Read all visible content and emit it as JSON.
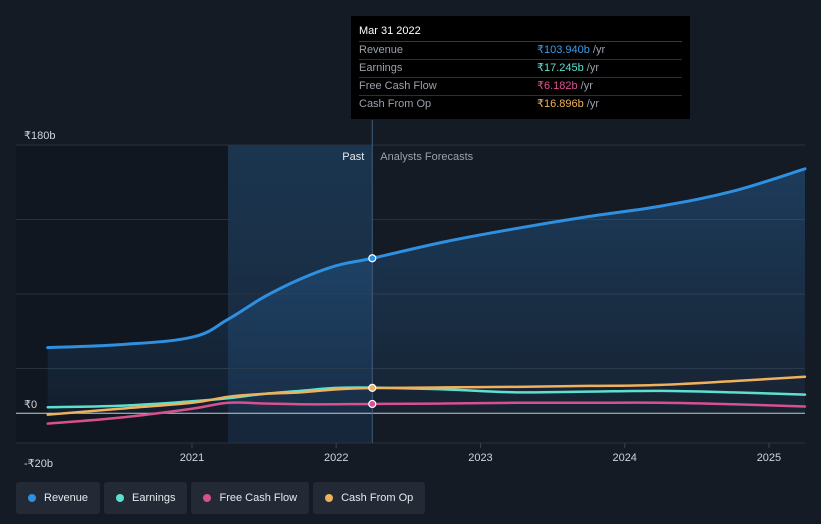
{
  "tooltip": {
    "date": "Mar 31 2022",
    "rows": [
      {
        "label": "Revenue",
        "value": "₹103.940b",
        "unit": "/yr",
        "color": "#3b9be8"
      },
      {
        "label": "Earnings",
        "value": "₹17.245b",
        "unit": "/yr",
        "color": "#5ce0d0"
      },
      {
        "label": "Free Cash Flow",
        "value": "₹6.182b",
        "unit": "/yr",
        "color": "#e0508f"
      },
      {
        "label": "Cash From Op",
        "value": "₹16.896b",
        "unit": "/yr",
        "color": "#f0b15c"
      }
    ]
  },
  "regions": {
    "past": "Past",
    "forecast": "Analysts Forecasts"
  },
  "legend": [
    {
      "label": "Revenue",
      "color": "#2f8fe0"
    },
    {
      "label": "Earnings",
      "color": "#5ce0d0"
    },
    {
      "label": "Free Cash Flow",
      "color": "#d8508f"
    },
    {
      "label": "Cash From Op",
      "color": "#f0b15c"
    }
  ],
  "chart_data": {
    "type": "line",
    "y_unit": "₹b",
    "ylim": [
      -20,
      180
    ],
    "y_ticks": [
      {
        "value": 180,
        "label": "₹180b"
      },
      {
        "value": 0,
        "label": "₹0"
      },
      {
        "value": -20,
        "label": "-₹20b"
      }
    ],
    "x_ticks": [
      {
        "value": 2021.0,
        "label": "2021"
      },
      {
        "value": 2022.0,
        "label": "2022"
      },
      {
        "value": 2023.0,
        "label": "2023"
      },
      {
        "value": 2024.0,
        "label": "2024"
      },
      {
        "value": 2025.0,
        "label": "2025"
      }
    ],
    "xlim": [
      2019.78,
      2025.25
    ],
    "past_end": 2022.25,
    "highlight_start": 2021.25,
    "grid": true,
    "series": [
      {
        "name": "Revenue",
        "color": "#2f8fe0",
        "fill": true,
        "x": [
          2020.0,
          2020.5,
          2021.0,
          2021.25,
          2021.5,
          2021.75,
          2022.0,
          2022.25,
          2022.75,
          2023.25,
          2023.75,
          2024.25,
          2024.75,
          2025.25
        ],
        "y": [
          44,
          46,
          51,
          63,
          78,
          90,
          99,
          104,
          115,
          124,
          132,
          139,
          149,
          164
        ]
      },
      {
        "name": "Earnings",
        "color": "#5ce0d0",
        "x": [
          2020.0,
          2020.5,
          2021.0,
          2021.25,
          2021.5,
          2021.75,
          2022.0,
          2022.25,
          2022.75,
          2023.25,
          2023.75,
          2024.25,
          2024.75,
          2025.25
        ],
        "y": [
          4,
          5,
          8,
          10,
          13,
          15,
          17,
          17.2,
          16,
          14,
          14.5,
          15,
          14,
          12.5
        ]
      },
      {
        "name": "Free Cash Flow",
        "color": "#d8508f",
        "x": [
          2020.0,
          2020.5,
          2021.0,
          2021.25,
          2021.5,
          2021.75,
          2022.0,
          2022.25,
          2022.75,
          2023.25,
          2023.75,
          2024.25,
          2024.75,
          2025.25
        ],
        "y": [
          -7,
          -3,
          3,
          7,
          6.5,
          6,
          6,
          6.2,
          6.5,
          7,
          7,
          7,
          6,
          4.5
        ]
      },
      {
        "name": "Cash From Op",
        "color": "#f0b15c",
        "x": [
          2020.0,
          2020.5,
          2021.0,
          2021.25,
          2021.5,
          2021.75,
          2022.0,
          2022.25,
          2022.75,
          2023.25,
          2023.75,
          2024.25,
          2024.75,
          2025.25
        ],
        "y": [
          -1,
          3,
          7,
          11,
          13,
          14,
          16,
          16.9,
          17.3,
          17.7,
          18.3,
          19,
          21.5,
          24.5
        ]
      }
    ],
    "markers": [
      {
        "series": "Revenue",
        "x": 2022.25,
        "y": 104
      },
      {
        "series": "Cash From Op",
        "x": 2022.25,
        "y": 17
      },
      {
        "series": "Free Cash Flow",
        "x": 2022.25,
        "y": 6.2
      }
    ]
  }
}
